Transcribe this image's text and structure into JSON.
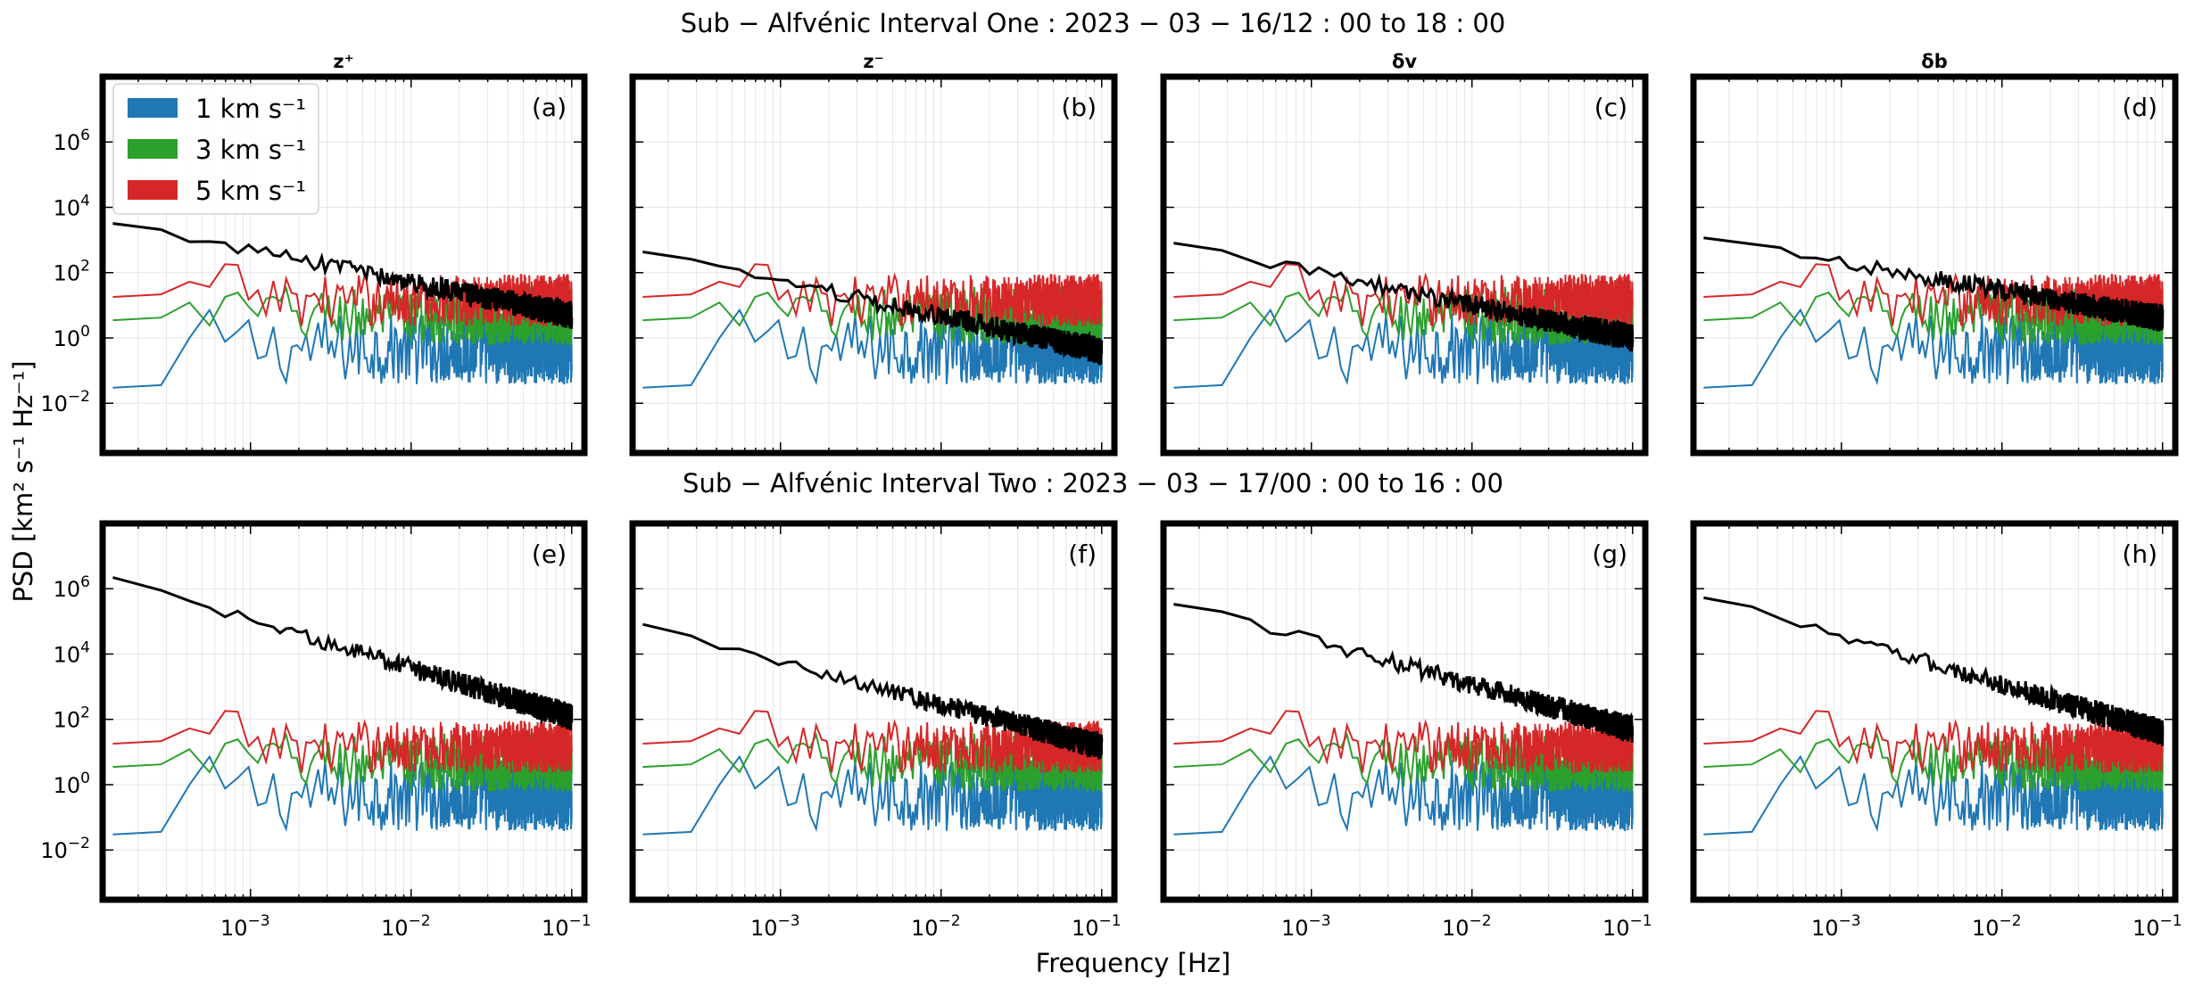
{
  "figure": {
    "title_row1": "Sub − Alfvénic Interval One : 2023 − 03 − 16/12 : 00 to 18 : 00",
    "title_row2": "Sub − Alfvénic Interval Two : 2023 − 03 − 17/00 : 00 to 16 : 00",
    "xlabel": "Frequency [Hz]",
    "ylabel": "PSD [km² s⁻¹ Hz⁻¹]"
  },
  "chart_data": {
    "type": "line",
    "x_scale": "log",
    "y_scale": "log",
    "xlim": [
      0.00012,
      0.12
    ],
    "ylim": [
      0.0003,
      100000000
    ],
    "x_ticks": [
      {
        "value": 0.001,
        "base": "10",
        "exp": "−3"
      },
      {
        "value": 0.01,
        "base": "10",
        "exp": "−2"
      },
      {
        "value": 0.1,
        "base": "10",
        "exp": "−1"
      }
    ],
    "y_ticks": [
      {
        "value": 0.01,
        "base": "10",
        "exp": "−2"
      },
      {
        "value": 1,
        "base": "10",
        "exp": "0"
      },
      {
        "value": 100,
        "base": "10",
        "exp": "2"
      },
      {
        "value": 10000,
        "base": "10",
        "exp": "4"
      },
      {
        "value": 1000000,
        "base": "10",
        "exp": "6"
      }
    ],
    "grid": true,
    "legend_position": "top-left of panel (a)",
    "noise_series": [
      {
        "name": "1 km s⁻¹",
        "color": "#1f77b4",
        "level": 1,
        "low_freq": 0.03,
        "spread": 1.1
      },
      {
        "name": "3 km s⁻¹",
        "color": "#2ca02c",
        "level": 9,
        "low_freq": 3.5,
        "spread": 0.9
      },
      {
        "name": "5 km s⁻¹",
        "color": "#d62728",
        "level": 25,
        "low_freq": 18,
        "spread": 0.8
      }
    ],
    "panels": [
      {
        "letter": "(a)",
        "title": "z⁺",
        "row": 0,
        "col": 0,
        "signal": {
          "color": "#000000",
          "start": 3500,
          "end": 5
        }
      },
      {
        "letter": "(b)",
        "title": "z⁻",
        "row": 0,
        "col": 1,
        "signal": {
          "color": "#000000",
          "start": 450,
          "end": 0.4
        }
      },
      {
        "letter": "(c)",
        "title": "δv",
        "row": 0,
        "col": 2,
        "signal": {
          "color": "#000000",
          "start": 800,
          "end": 1
        }
      },
      {
        "letter": "(d)",
        "title": "δb",
        "row": 0,
        "col": 3,
        "signal": {
          "color": "#000000",
          "start": 1100,
          "end": 4
        }
      },
      {
        "letter": "(e)",
        "title": "",
        "row": 1,
        "col": 0,
        "signal": {
          "color": "#000000",
          "start": 2000000,
          "end": 120
        }
      },
      {
        "letter": "(f)",
        "title": "",
        "row": 1,
        "col": 1,
        "signal": {
          "color": "#000000",
          "start": 70000,
          "end": 15
        }
      },
      {
        "letter": "(g)",
        "title": "",
        "row": 1,
        "col": 2,
        "signal": {
          "color": "#000000",
          "start": 400000,
          "end": 50
        }
      },
      {
        "letter": "(h)",
        "title": "",
        "row": 1,
        "col": 3,
        "signal": {
          "color": "#000000",
          "start": 600000,
          "end": 40
        }
      }
    ]
  }
}
